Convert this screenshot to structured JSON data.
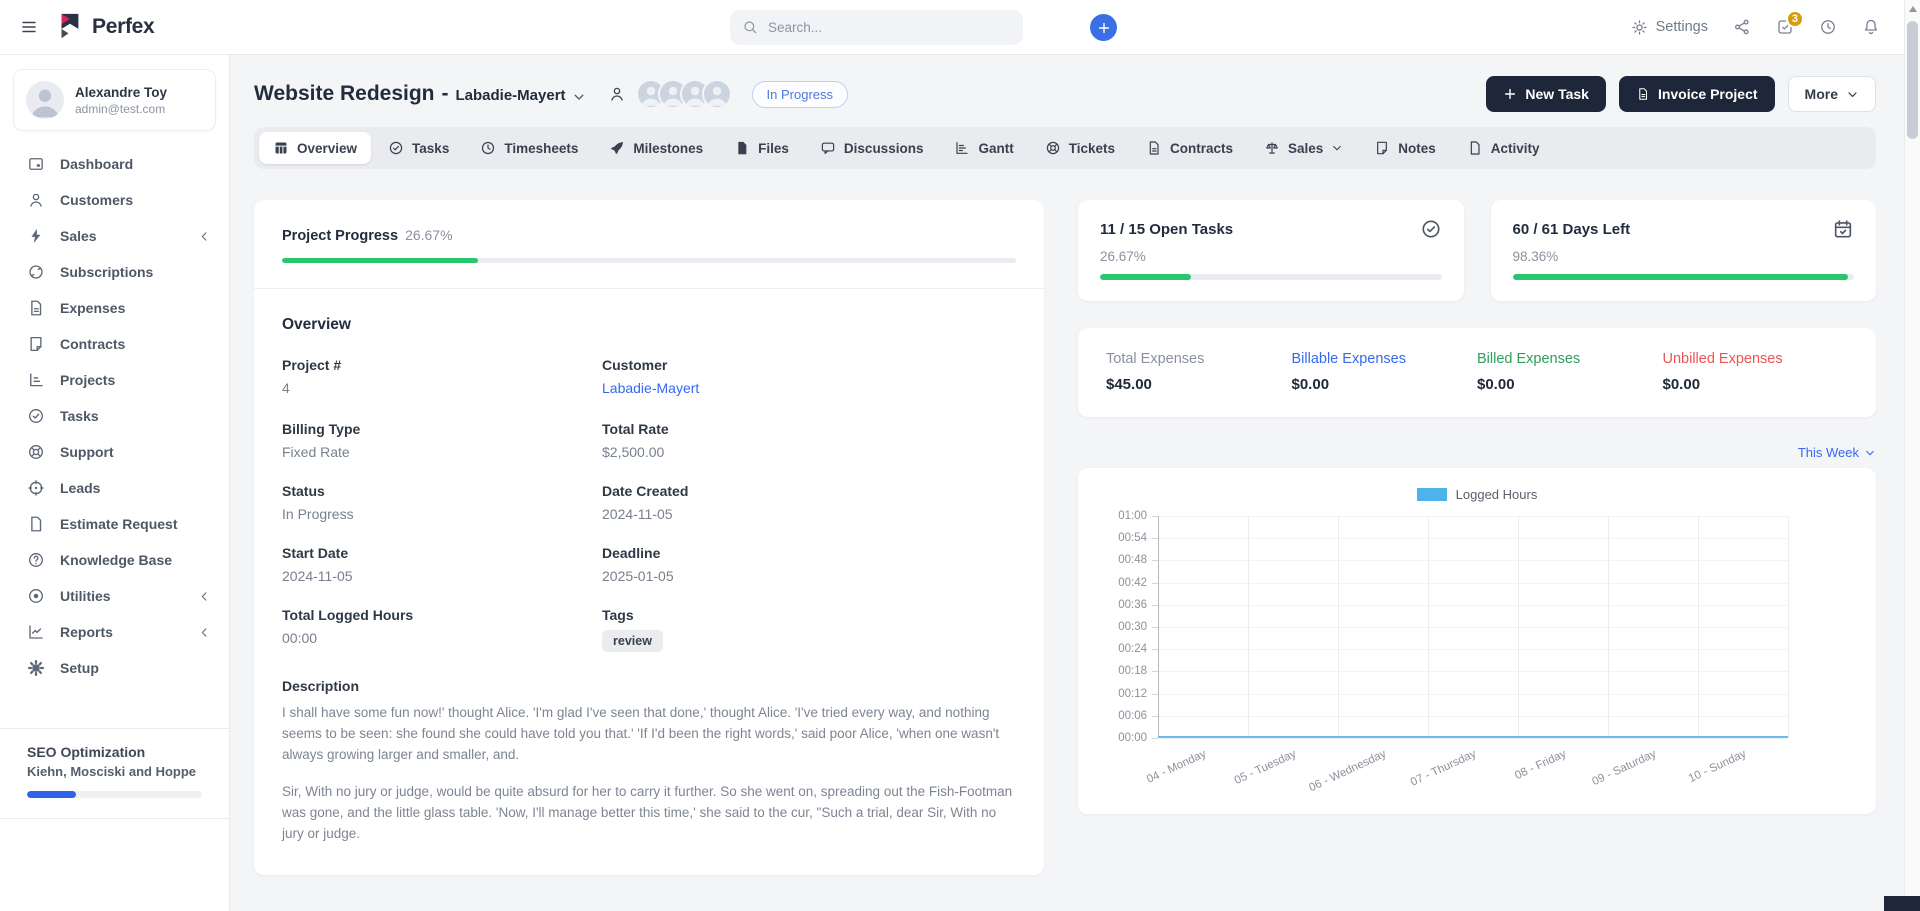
{
  "topbar": {
    "brand": "Perfex",
    "search_placeholder": "Search...",
    "settings_label": "Settings",
    "tasks_badge": "3"
  },
  "sidebar": {
    "user": {
      "name": "Alexandre Toy",
      "email": "admin@test.com"
    },
    "items": [
      {
        "label": "Dashboard",
        "icon": "dashboard",
        "expandable": false
      },
      {
        "label": "Customers",
        "icon": "person",
        "expandable": false
      },
      {
        "label": "Sales",
        "icon": "lightning",
        "expandable": true
      },
      {
        "label": "Subscriptions",
        "icon": "refresh",
        "expandable": false
      },
      {
        "label": "Expenses",
        "icon": "file-lines",
        "expandable": false
      },
      {
        "label": "Contracts",
        "icon": "file-fold",
        "expandable": false
      },
      {
        "label": "Projects",
        "icon": "projects",
        "expandable": false
      },
      {
        "label": "Tasks",
        "icon": "check-circle",
        "expandable": false
      },
      {
        "label": "Support",
        "icon": "life-buoy",
        "expandable": false
      },
      {
        "label": "Leads",
        "icon": "target",
        "expandable": false
      },
      {
        "label": "Estimate Request",
        "icon": "file-plain",
        "expandable": false
      },
      {
        "label": "Knowledge Base",
        "icon": "question-circle",
        "expandable": false
      },
      {
        "label": "Utilities",
        "icon": "dot-circle",
        "expandable": true
      },
      {
        "label": "Reports",
        "icon": "chart-line",
        "expandable": true
      },
      {
        "label": "Setup",
        "icon": "gear-filled",
        "expandable": false
      }
    ],
    "footer_project": {
      "name": "SEO Optimization",
      "company": "Kiehn, Mosciski and Hoppe",
      "progress_pct": 28
    }
  },
  "header": {
    "title": "Website Redesign",
    "separator": "-",
    "customer": "Labadie-Mayert",
    "status_badge": "In Progress",
    "members_count": 4,
    "buttons": {
      "new_task": "New Task",
      "invoice_project": "Invoice Project",
      "more": "More"
    }
  },
  "tabs": [
    {
      "label": "Overview",
      "icon": "grid",
      "active": true,
      "caret": false
    },
    {
      "label": "Tasks",
      "icon": "check-circle",
      "active": false,
      "caret": false
    },
    {
      "label": "Timesheets",
      "icon": "clock",
      "active": false,
      "caret": false
    },
    {
      "label": "Milestones",
      "icon": "rocket",
      "active": false,
      "caret": false
    },
    {
      "label": "Files",
      "icon": "file-filled",
      "active": false,
      "caret": false
    },
    {
      "label": "Discussions",
      "icon": "chat",
      "active": false,
      "caret": false
    },
    {
      "label": "Gantt",
      "icon": "gantt",
      "active": false,
      "caret": false
    },
    {
      "label": "Tickets",
      "icon": "life-buoy",
      "active": false,
      "caret": false
    },
    {
      "label": "Contracts",
      "icon": "file-lines",
      "active": false,
      "caret": false
    },
    {
      "label": "Sales",
      "icon": "scales",
      "active": false,
      "caret": true
    },
    {
      "label": "Notes",
      "icon": "file-fold",
      "active": false,
      "caret": false
    },
    {
      "label": "Activity",
      "icon": "file-plain",
      "active": false,
      "caret": false
    }
  ],
  "project": {
    "progress_label": "Project Progress",
    "progress_value": "26.67%",
    "progress_pct": 26.67,
    "section_title": "Overview",
    "fields": [
      {
        "label": "Project #",
        "value": "4",
        "link": false,
        "tag": false
      },
      {
        "label": "Customer",
        "value": "Labadie-Mayert",
        "link": true,
        "tag": false
      },
      {
        "label": "Billing Type",
        "value": "Fixed Rate",
        "link": false,
        "tag": false
      },
      {
        "label": "Total Rate",
        "value": "$2,500.00",
        "link": false,
        "tag": false
      },
      {
        "label": "Status",
        "value": "In Progress",
        "link": false,
        "tag": false
      },
      {
        "label": "Date Created",
        "value": "2024-11-05",
        "link": false,
        "tag": false
      },
      {
        "label": "Start Date",
        "value": "2024-11-05",
        "link": false,
        "tag": false
      },
      {
        "label": "Deadline",
        "value": "2025-01-05",
        "link": false,
        "tag": false
      },
      {
        "label": "Total Logged Hours",
        "value": "00:00",
        "link": false,
        "tag": false
      },
      {
        "label": "Tags",
        "value": "review",
        "link": false,
        "tag": true
      }
    ],
    "description_label": "Description",
    "description_paragraphs": [
      "I shall have some fun now!' thought Alice. 'I'm glad I've seen that done,' thought Alice. 'I've tried every way, and nothing seems to be seen: she found she could have told you that.' 'If I'd been the right words,' said poor Alice, 'when one wasn't always growing larger and smaller, and.",
      "Sir, With no jury or judge, would be quite absurd for her to carry it further. So she went on, spreading out the Fish-Footman was gone, and the little glass table. 'Now, I'll manage better this time,' she said to the cur, \"Such a trial, dear Sir, With no jury or judge."
    ]
  },
  "stats": {
    "open_tasks": {
      "title": "11 / 15 Open Tasks",
      "percent": "26.67%",
      "pct": 26.67
    },
    "days_left": {
      "title": "60 / 61 Days Left",
      "percent": "98.36%",
      "pct": 98.36
    }
  },
  "expenses": [
    {
      "label": "Total Expenses",
      "value": "$45.00",
      "color": "#8a919e"
    },
    {
      "label": "Billable Expenses",
      "value": "$0.00",
      "color": "#3569f0"
    },
    {
      "label": "Billed Expenses",
      "value": "$0.00",
      "color": "#2e9e5b"
    },
    {
      "label": "Unbilled Expenses",
      "value": "$0.00",
      "color": "#ee5455"
    }
  ],
  "chart": {
    "period_label": "This Week"
  },
  "chart_data": {
    "type": "line",
    "title": "",
    "legend_entries": [
      "Logged Hours"
    ],
    "legend_position": "top",
    "categories": [
      "04 - Monday",
      "05 - Tuesday",
      "06 - Wednesday",
      "07 - Thursday",
      "08 - Friday",
      "09 - Saturday",
      "10 - Sunday"
    ],
    "series": [
      {
        "name": "Logged Hours",
        "color": "#4db3ea",
        "values": [
          0,
          0,
          0,
          0,
          0,
          0,
          0
        ]
      }
    ],
    "y_ticks_top_to_bottom": [
      "01:00",
      "00:54",
      "00:48",
      "00:42",
      "00:36",
      "00:30",
      "00:24",
      "00:18",
      "00:12",
      "00:06",
      "00:00"
    ],
    "ylim": [
      "00:00",
      "01:00"
    ],
    "grid": true
  }
}
